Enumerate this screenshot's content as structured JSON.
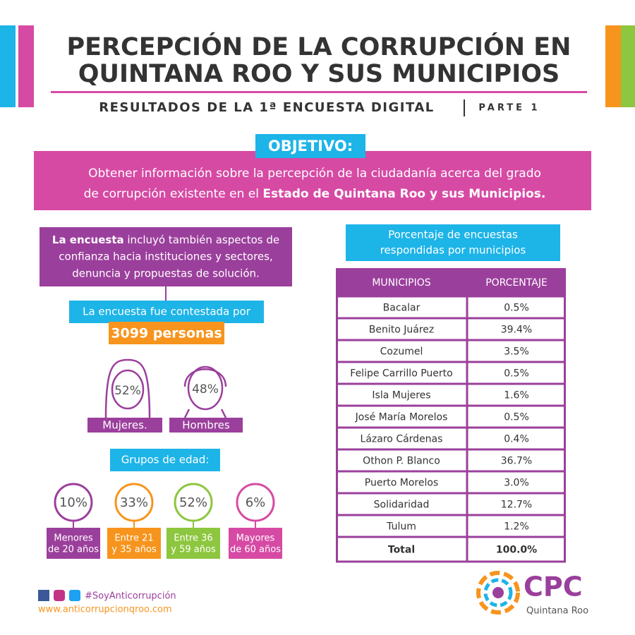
{
  "header": {
    "title_line_1": "PERCEPCIÓN DE LA CORRUPCIÓN EN",
    "title_line_2": "QUINTANA ROO Y SUS MUNICIPIOS",
    "subtitle": "RESULTADOS DE LA 1ª ENCUESTA DIGITAL",
    "part": "PARTE 1"
  },
  "objective": {
    "label": "OBJETIVO:",
    "line_1": "Obtener información sobre la percepción de la ciudadanía acerca del grado",
    "line_2": "de corrupción existente en el ",
    "line_2_bold": "Estado de Quintana Roo  y sus Municipios."
  },
  "survey": {
    "bold": "La encuesta",
    "line_1": " incluyó también aspectos de",
    "line_2": "confianza hacia instituciones y sectores,",
    "line_3": "denuncia y propuestas de solución.",
    "answered_by": "La encuesta fue contestada por",
    "respondents": "3099 personas"
  },
  "gender": {
    "women": {
      "percent": "52%",
      "label": "Mujeres."
    },
    "men": {
      "percent": "48%",
      "label": "Hombres"
    }
  },
  "age_groups": {
    "title": "Grupos de edad:",
    "items": [
      {
        "percent": "10%",
        "label_1": "Menores",
        "label_2": "de 20 años"
      },
      {
        "percent": "33%",
        "label_1": "Entre 21",
        "label_2": "y 35 años"
      },
      {
        "percent": "52%",
        "label_1": "Entre 36",
        "label_2": "y 59 años"
      },
      {
        "percent": "6%",
        "label_1": "Mayores",
        "label_2": "de 60 años"
      }
    ]
  },
  "table": {
    "caption_1": "Porcentaje de encuestas",
    "caption_2": "respondidas por municipios",
    "header": [
      "MUNICIPIOS",
      "PORCENTAJE"
    ],
    "rows": [
      [
        "Bacalar",
        "0.5%"
      ],
      [
        "Benito Juárez",
        "39.4%"
      ],
      [
        "Cozumel",
        "3.5%"
      ],
      [
        "Felipe Carrillo Puerto",
        "0.5%"
      ],
      [
        "Isla Mujeres",
        "1.6%"
      ],
      [
        "José María Morelos",
        "0.5%"
      ],
      [
        "Lázaro Cárdenas",
        "0.4%"
      ],
      [
        "Othon P. Blanco",
        "36.7%"
      ],
      [
        "Puerto Morelos",
        "3.0%"
      ],
      [
        "Solidaridad",
        "12.7%"
      ],
      [
        "Tulum",
        "1.2%"
      ]
    ],
    "total": [
      "Total",
      "100.0%"
    ]
  },
  "footer": {
    "hashtag": "#SoyAnticorrupción",
    "url": "www.anticorrupcionqroo.com"
  },
  "logo": {
    "name": "CPC",
    "place": "Quintana Roo"
  }
}
